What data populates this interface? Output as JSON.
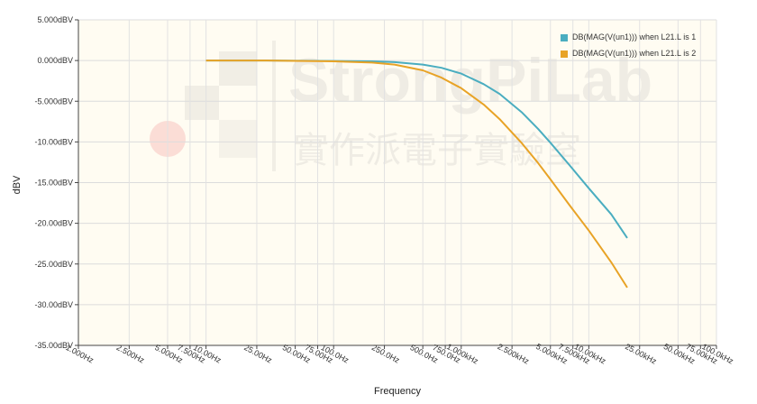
{
  "chart_data": {
    "type": "line",
    "title": "",
    "xlabel": "Frequency",
    "ylabel": "dBV",
    "x_scale": "log",
    "xlim": [
      1,
      100000
    ],
    "ylim": [
      -35,
      5
    ],
    "grid": true,
    "legend_position": "top-right",
    "y_tick_values": [
      5,
      0,
      -5,
      -10,
      -15,
      -20,
      -25,
      -30,
      -35
    ],
    "y_tick_labels": [
      "5.000dBV",
      "0.000dBV",
      "-5.000dBV",
      "-10.00dBV",
      "-15.00dBV",
      "-20.00dBV",
      "-25.00dBV",
      "-30.00dBV",
      "-35.00dBV"
    ],
    "x_tick_values": [
      1,
      2.5,
      5,
      7.5,
      10,
      25,
      50,
      75,
      100,
      250,
      500,
      750,
      1000,
      2500,
      5000,
      7500,
      10000,
      25000,
      50000,
      75000,
      100000
    ],
    "x_tick_labels": [
      "1.000Hz",
      "2.500Hz",
      "5.000Hz",
      "7.500Hz",
      "10.00Hz",
      "25.00Hz",
      "50.00Hz",
      "75.00Hz",
      "100.0Hz",
      "250.0Hz",
      "500.0Hz",
      "750.0Hz",
      "1.000kHz",
      "2.500kHz",
      "5.000kHz",
      "7.500kHz",
      "10.00kHz",
      "25.00kHz",
      "50.00kHz",
      "75.00kHz",
      "100.0kHz"
    ],
    "series": [
      {
        "name": "DB(MAG(V(un1))) when L21.L is 1",
        "color": "#4AADC0",
        "x": [
          10,
          30,
          100,
          200,
          300,
          500,
          700,
          1000,
          1500,
          2000,
          3000,
          4000,
          5000,
          7000,
          10000,
          15000,
          20000
        ],
        "y": [
          0,
          0,
          -0.05,
          -0.1,
          -0.2,
          -0.5,
          -0.9,
          -1.6,
          -2.9,
          -4.1,
          -6.4,
          -8.4,
          -10.1,
          -12.8,
          -15.7,
          -18.9,
          -21.8
        ]
      },
      {
        "name": "DB(MAG(V(un1))) when L21.L is 2",
        "color": "#E8A326",
        "x": [
          10,
          30,
          100,
          200,
          300,
          500,
          700,
          1000,
          1500,
          2000,
          3000,
          4000,
          5000,
          7000,
          10000,
          15000,
          20000
        ],
        "y": [
          0,
          0,
          -0.1,
          -0.25,
          -0.5,
          -1.2,
          -2.1,
          -3.4,
          -5.4,
          -7.2,
          -10.2,
          -12.6,
          -14.6,
          -17.7,
          -20.9,
          -24.8,
          -27.9
        ]
      }
    ]
  },
  "watermark": {
    "brand": "StrongPiLab",
    "subtitle": "實作派電子實驗室"
  }
}
